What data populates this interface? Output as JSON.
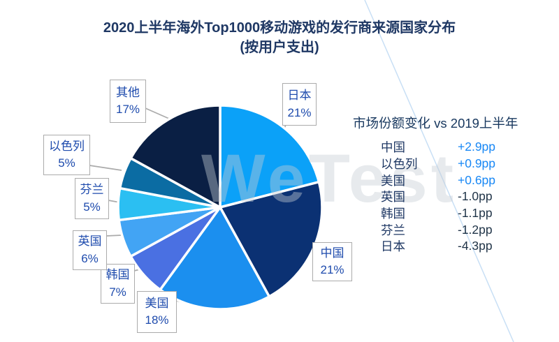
{
  "title": {
    "line1": "2020上半年海外Top1000移动游戏的发行商来源国家分布",
    "line2": "(按用户支出)"
  },
  "watermark": "WeTest",
  "chart_data": {
    "type": "pie",
    "title": "2020上半年海外Top1000移动游戏的发行商来源国家分布(按用户支出)",
    "start_angle_deg": 0,
    "direction": "clockwise",
    "label_text_color": "#1E4BAD",
    "slices": [
      {
        "name": "日本",
        "value": 21,
        "pct": "21%",
        "color": "#0BA1F8"
      },
      {
        "name": "中国",
        "value": 21,
        "pct": "21%",
        "color": "#0B3173"
      },
      {
        "name": "美国",
        "value": 18,
        "pct": "18%",
        "color": "#1B8FEF"
      },
      {
        "name": "韩国",
        "value": 7,
        "pct": "7%",
        "color": "#4A70E2"
      },
      {
        "name": "英国",
        "value": 6,
        "pct": "6%",
        "color": "#42A4F4"
      },
      {
        "name": "芬兰",
        "value": 5,
        "pct": "5%",
        "color": "#2BBFF2"
      },
      {
        "name": "以色列",
        "value": 5,
        "pct": "5%",
        "color": "#0B6CA3"
      },
      {
        "name": "其他",
        "value": 17,
        "pct": "17%",
        "color": "#0A1F44"
      }
    ]
  },
  "share_change_panel": {
    "title": "市场份额变化 vs 2019上半年",
    "positive_color": "#1787F5",
    "negative_color": "#1F3347",
    "rows": [
      {
        "country": "中国",
        "change": "+2.9pp"
      },
      {
        "country": "以色列",
        "change": "+0.9pp"
      },
      {
        "country": "美国",
        "change": "+0.6pp"
      },
      {
        "country": "英国",
        "change": "-1.0pp"
      },
      {
        "country": "韩国",
        "change": "-1.1pp"
      },
      {
        "country": "芬兰",
        "change": "-1.2pp"
      },
      {
        "country": "日本",
        "change": "-4.3pp"
      }
    ]
  }
}
